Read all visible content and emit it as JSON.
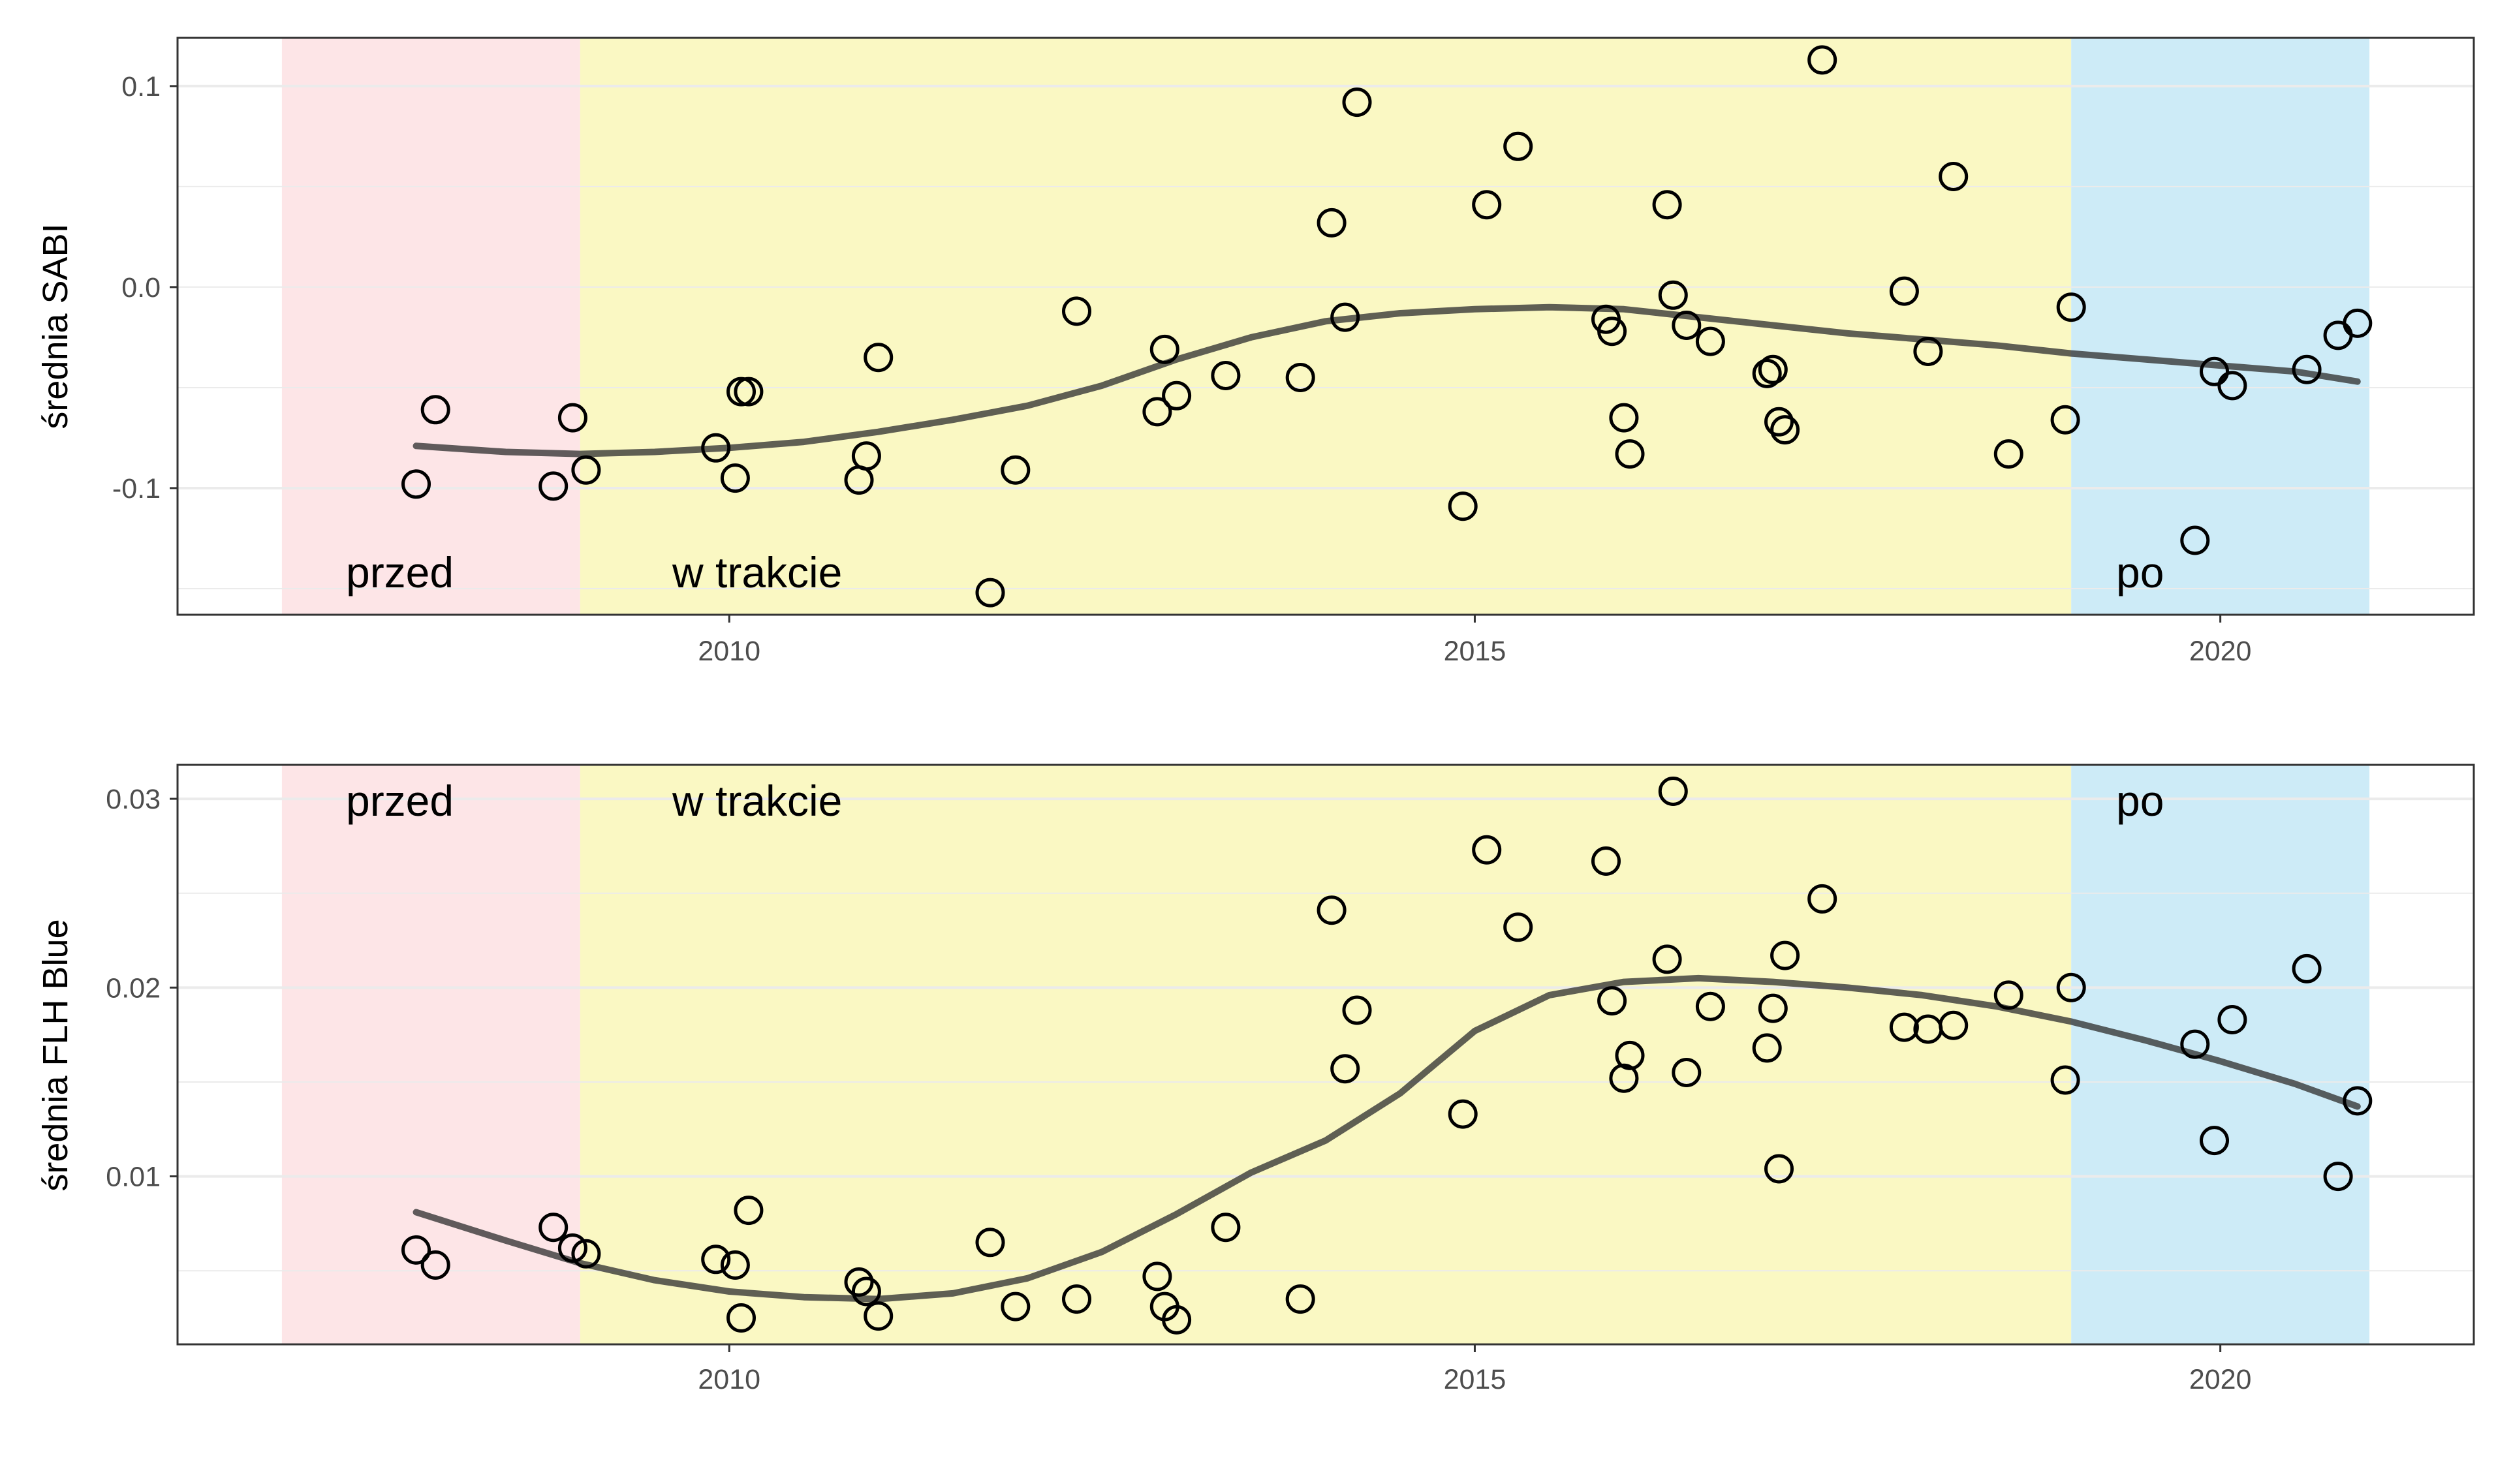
{
  "chart_data": [
    {
      "type": "scatter",
      "ylabel": "średnia SABI",
      "xlabel": "",
      "xlim": [
        2006.3,
        2021.7
      ],
      "ylim": [
        -0.163,
        0.124
      ],
      "x_ticks": [
        2010,
        2015,
        2020
      ],
      "x_tick_labels": [
        "2010",
        "2015",
        "2020"
      ],
      "y_ticks": [
        0.1,
        0.0,
        -0.1
      ],
      "y_tick_labels": [
        "0.1",
        "0.0",
        "-0.1"
      ],
      "grid": true,
      "phases": [
        {
          "label": "przed",
          "start": 2007.0,
          "end": 2009.0,
          "color": "#fde5e7"
        },
        {
          "label": "w trakcie",
          "start": 2009.0,
          "end": 2019.0,
          "color": "#faf8c3"
        },
        {
          "label": "po",
          "start": 2019.0,
          "end": 2021.0,
          "color": "#cdebf7"
        }
      ],
      "phase_label_position": "bottom",
      "points": [
        [
          2007.9,
          -0.098
        ],
        [
          2008.03,
          -0.061
        ],
        [
          2008.82,
          -0.099
        ],
        [
          2008.95,
          -0.065
        ],
        [
          2009.04,
          -0.091
        ],
        [
          2009.91,
          -0.08
        ],
        [
          2010.04,
          -0.095
        ],
        [
          2010.08,
          -0.052
        ],
        [
          2010.13,
          -0.052
        ],
        [
          2010.87,
          -0.096
        ],
        [
          2010.92,
          -0.084
        ],
        [
          2011.0,
          -0.035
        ],
        [
          2011.75,
          -0.152
        ],
        [
          2011.92,
          -0.091
        ],
        [
          2012.33,
          -0.012
        ],
        [
          2012.87,
          -0.062
        ],
        [
          2012.92,
          -0.031
        ],
        [
          2013.0,
          -0.054
        ],
        [
          2013.33,
          -0.044
        ],
        [
          2013.83,
          -0.045
        ],
        [
          2014.04,
          0.032
        ],
        [
          2014.13,
          -0.015
        ],
        [
          2014.21,
          0.092
        ],
        [
          2014.92,
          -0.109
        ],
        [
          2015.08,
          0.041
        ],
        [
          2015.29,
          0.07
        ],
        [
          2015.88,
          -0.016
        ],
        [
          2015.92,
          -0.022
        ],
        [
          2016.0,
          -0.065
        ],
        [
          2016.04,
          -0.083
        ],
        [
          2016.29,
          0.041
        ],
        [
          2016.33,
          -0.004
        ],
        [
          2016.42,
          -0.019
        ],
        [
          2016.58,
          -0.027
        ],
        [
          2016.96,
          -0.043
        ],
        [
          2017.0,
          -0.041
        ],
        [
          2017.04,
          -0.067
        ],
        [
          2017.08,
          -0.071
        ],
        [
          2017.33,
          0.113
        ],
        [
          2017.88,
          -0.002
        ],
        [
          2018.04,
          -0.032
        ],
        [
          2018.21,
          0.055
        ],
        [
          2018.58,
          -0.083
        ],
        [
          2018.96,
          -0.066
        ],
        [
          2019.0,
          -0.01
        ],
        [
          2019.83,
          -0.126
        ],
        [
          2019.96,
          -0.042
        ],
        [
          2020.08,
          -0.049
        ],
        [
          2020.58,
          -0.041
        ],
        [
          2020.79,
          -0.024
        ],
        [
          2020.92,
          -0.018
        ]
      ],
      "smooth": [
        [
          2007.9,
          -0.079
        ],
        [
          2008.5,
          -0.082
        ],
        [
          2009.0,
          -0.083
        ],
        [
          2009.5,
          -0.082
        ],
        [
          2010.0,
          -0.08
        ],
        [
          2010.5,
          -0.077
        ],
        [
          2011.0,
          -0.072
        ],
        [
          2011.5,
          -0.066
        ],
        [
          2012.0,
          -0.059
        ],
        [
          2012.5,
          -0.049
        ],
        [
          2013.0,
          -0.036
        ],
        [
          2013.5,
          -0.025
        ],
        [
          2014.0,
          -0.017
        ],
        [
          2014.5,
          -0.013
        ],
        [
          2015.0,
          -0.011
        ],
        [
          2015.5,
          -0.01
        ],
        [
          2016.0,
          -0.011
        ],
        [
          2016.5,
          -0.015
        ],
        [
          2017.0,
          -0.019
        ],
        [
          2017.5,
          -0.023
        ],
        [
          2018.0,
          -0.026
        ],
        [
          2018.5,
          -0.029
        ],
        [
          2019.0,
          -0.033
        ],
        [
          2019.5,
          -0.036
        ],
        [
          2020.0,
          -0.039
        ],
        [
          2020.5,
          -0.042
        ],
        [
          2020.92,
          -0.047
        ]
      ]
    },
    {
      "type": "scatter",
      "ylabel": "średnia FLH Blue",
      "xlabel": "",
      "xlim": [
        2006.3,
        2021.7
      ],
      "ylim": [
        0.0011,
        0.0318
      ],
      "x_ticks": [
        2010,
        2015,
        2020
      ],
      "x_tick_labels": [
        "2010",
        "2015",
        "2020"
      ],
      "y_ticks": [
        0.03,
        0.02,
        0.01
      ],
      "y_tick_labels": [
        "0.03",
        "0.02",
        "0.01"
      ],
      "grid": true,
      "phases": [
        {
          "label": "przed",
          "start": 2007.0,
          "end": 2009.0,
          "color": "#fde5e7"
        },
        {
          "label": "w trakcie",
          "start": 2009.0,
          "end": 2019.0,
          "color": "#faf8c3"
        },
        {
          "label": "po",
          "start": 2019.0,
          "end": 2021.0,
          "color": "#cdebf7"
        }
      ],
      "phase_label_position": "top",
      "points": [
        [
          2007.9,
          0.0061
        ],
        [
          2008.03,
          0.0053
        ],
        [
          2008.82,
          0.0073
        ],
        [
          2008.95,
          0.0062
        ],
        [
          2009.04,
          0.0059
        ],
        [
          2009.91,
          0.0056
        ],
        [
          2010.04,
          0.0053
        ],
        [
          2010.08,
          0.0025
        ],
        [
          2010.13,
          0.0082
        ],
        [
          2010.87,
          0.0044
        ],
        [
          2010.92,
          0.0039
        ],
        [
          2011.0,
          0.0026
        ],
        [
          2011.75,
          0.0065
        ],
        [
          2011.92,
          0.0031
        ],
        [
          2012.33,
          0.0035
        ],
        [
          2012.87,
          0.0047
        ],
        [
          2012.92,
          0.0031
        ],
        [
          2013.0,
          0.0024
        ],
        [
          2013.33,
          0.0073
        ],
        [
          2013.83,
          0.0035
        ],
        [
          2014.04,
          0.0241
        ],
        [
          2014.13,
          0.0157
        ],
        [
          2014.21,
          0.0188
        ],
        [
          2014.92,
          0.0133
        ],
        [
          2015.08,
          0.0273
        ],
        [
          2015.29,
          0.0232
        ],
        [
          2015.88,
          0.0267
        ],
        [
          2015.92,
          0.0193
        ],
        [
          2016.0,
          0.0152
        ],
        [
          2016.04,
          0.0164
        ],
        [
          2016.29,
          0.0215
        ],
        [
          2016.33,
          0.0304
        ],
        [
          2016.42,
          0.0155
        ],
        [
          2016.58,
          0.019
        ],
        [
          2016.96,
          0.0168
        ],
        [
          2017.0,
          0.0189
        ],
        [
          2017.04,
          0.0104
        ],
        [
          2017.08,
          0.0217
        ],
        [
          2017.33,
          0.0247
        ],
        [
          2017.88,
          0.0179
        ],
        [
          2018.04,
          0.0178
        ],
        [
          2018.21,
          0.018
        ],
        [
          2018.58,
          0.0196
        ],
        [
          2018.96,
          0.0151
        ],
        [
          2019.0,
          0.02
        ],
        [
          2019.83,
          0.017
        ],
        [
          2019.96,
          0.0119
        ],
        [
          2020.08,
          0.0183
        ],
        [
          2020.58,
          0.021
        ],
        [
          2020.79,
          0.01
        ],
        [
          2020.92,
          0.014
        ]
      ],
      "smooth": [
        [
          2007.9,
          0.0081
        ],
        [
          2008.5,
          0.0066
        ],
        [
          2009.0,
          0.0054
        ],
        [
          2009.5,
          0.0045
        ],
        [
          2010.0,
          0.0039
        ],
        [
          2010.5,
          0.0036
        ],
        [
          2011.0,
          0.0035
        ],
        [
          2011.5,
          0.0038
        ],
        [
          2012.0,
          0.0046
        ],
        [
          2012.5,
          0.006
        ],
        [
          2013.0,
          0.008
        ],
        [
          2013.5,
          0.0102
        ],
        [
          2014.0,
          0.0119
        ],
        [
          2014.5,
          0.0144
        ],
        [
          2015.0,
          0.0177
        ],
        [
          2015.5,
          0.0196
        ],
        [
          2016.0,
          0.0203
        ],
        [
          2016.5,
          0.0205
        ],
        [
          2017.0,
          0.0203
        ],
        [
          2017.5,
          0.02
        ],
        [
          2018.0,
          0.0196
        ],
        [
          2018.5,
          0.019
        ],
        [
          2019.0,
          0.0182
        ],
        [
          2019.5,
          0.0172
        ],
        [
          2020.0,
          0.0161
        ],
        [
          2020.5,
          0.0149
        ],
        [
          2020.92,
          0.0137
        ]
      ]
    }
  ]
}
